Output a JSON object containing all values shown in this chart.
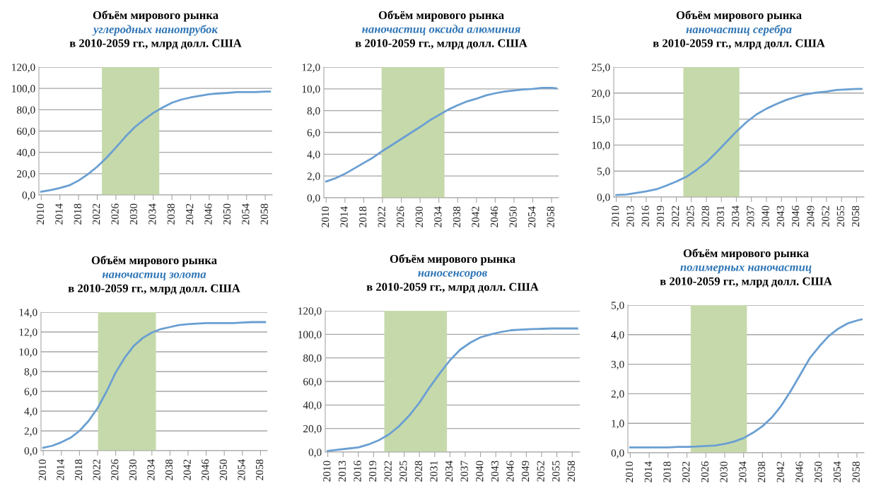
{
  "chart_data": [
    {
      "type": "line",
      "title": "Объём мирового рынка",
      "subtitle": "углеродных нанотрубок",
      "annotations": [
        "в 2010-2059 гг., млрд долл. США"
      ],
      "grid": "y",
      "marker": "none",
      "line_style": "solid",
      "x": [
        2010,
        2012,
        2014,
        2016,
        2018,
        2020,
        2022,
        2024,
        2026,
        2028,
        2030,
        2032,
        2034,
        2036,
        2038,
        2040,
        2042,
        2044,
        2046,
        2048,
        2050,
        2052,
        2054,
        2056,
        2058,
        2059
      ],
      "series": [
        {
          "color": "#6a9fd2",
          "values": [
            3,
            4.5,
            6.5,
            9,
            13.5,
            19.5,
            26.5,
            35,
            44.5,
            54.5,
            63.5,
            70.5,
            77,
            82,
            86.5,
            89.5,
            91.5,
            93,
            94.5,
            95.3,
            95.8,
            96.5,
            96.5,
            96.5,
            97,
            97
          ]
        }
      ],
      "xlim": [
        2009.5,
        2059.5
      ],
      "xticks": [
        2010,
        2014,
        2018,
        2022,
        2026,
        2030,
        2034,
        2038,
        2042,
        2046,
        2050,
        2054,
        2058
      ],
      "ylim": [
        0,
        120
      ],
      "yticks": [
        {
          "value": 0,
          "label": "0,0"
        },
        {
          "value": 20,
          "label": "20,0"
        },
        {
          "value": 40,
          "label": "40,0"
        },
        {
          "value": 60,
          "label": "60,0"
        },
        {
          "value": 80,
          "label": "80,0"
        },
        {
          "value": 100,
          "label": "100,0"
        },
        {
          "value": 120,
          "label": "120,0"
        }
      ],
      "bands": [
        {
          "axis": "x",
          "from": 2023.0,
          "to": 2035.3,
          "color": "#c6d9ab"
        }
      ]
    },
    {
      "type": "line",
      "title": "Объём мирового рынка",
      "subtitle": "наночастиц оксида алюминия",
      "annotations": [
        "в 2010-2059 гг., млрд долл. США"
      ],
      "grid": "y",
      "marker": "none",
      "line_style": "solid",
      "x": [
        2010,
        2012,
        2014,
        2016,
        2018,
        2020,
        2022,
        2024,
        2026,
        2028,
        2030,
        2032,
        2034,
        2036,
        2038,
        2040,
        2042,
        2044,
        2046,
        2048,
        2050,
        2052,
        2054,
        2056,
        2058,
        2059
      ],
      "series": [
        {
          "color": "#6a9fd2",
          "values": [
            1.5,
            1.8,
            2.2,
            2.7,
            3.2,
            3.7,
            4.3,
            4.85,
            5.4,
            5.95,
            6.5,
            7.1,
            7.6,
            8.1,
            8.5,
            8.85,
            9.1,
            9.4,
            9.6,
            9.75,
            9.85,
            9.95,
            10.0,
            10.1,
            10.1,
            10.05
          ]
        }
      ],
      "xlim": [
        2009.5,
        2059.5
      ],
      "xticks": [
        2010,
        2014,
        2018,
        2022,
        2026,
        2030,
        2034,
        2038,
        2042,
        2046,
        2050,
        2054,
        2058
      ],
      "ylim": [
        0,
        12
      ],
      "yticks": [
        {
          "value": 0,
          "label": "0,0"
        },
        {
          "value": 2,
          "label": "2,0"
        },
        {
          "value": 4,
          "label": "4,0"
        },
        {
          "value": 6,
          "label": "6,0"
        },
        {
          "value": 8,
          "label": "8,0"
        },
        {
          "value": 10,
          "label": "10,0"
        },
        {
          "value": 12,
          "label": "12,0"
        }
      ],
      "bands": [
        {
          "axis": "x",
          "from": 2021.8,
          "to": 2035.2,
          "color": "#c6d9ab"
        }
      ]
    },
    {
      "type": "line",
      "title": "Объём мирового рынка",
      "subtitle": "наночастиц серебра",
      "annotations": [
        "в 2010-2059 гг., млрд долл. США"
      ],
      "grid": "y",
      "marker": "none",
      "line_style": "solid",
      "x": [
        2010,
        2012,
        2014,
        2016,
        2018,
        2020,
        2022,
        2024,
        2026,
        2028,
        2030,
        2032,
        2034,
        2036,
        2038,
        2040,
        2042,
        2044,
        2046,
        2048,
        2050,
        2052,
        2054,
        2056,
        2058,
        2059
      ],
      "series": [
        {
          "color": "#6a9fd2",
          "values": [
            0.4,
            0.5,
            0.8,
            1.1,
            1.5,
            2.2,
            3.0,
            3.9,
            5.2,
            6.7,
            8.6,
            10.6,
            12.6,
            14.4,
            15.9,
            17.0,
            17.9,
            18.7,
            19.3,
            19.8,
            20.1,
            20.3,
            20.6,
            20.7,
            20.8,
            20.8
          ]
        }
      ],
      "xlim": [
        2009.5,
        2059.5
      ],
      "xticks": [
        2010,
        2013,
        2016,
        2019,
        2022,
        2025,
        2028,
        2031,
        2034,
        2037,
        2040,
        2043,
        2046,
        2049,
        2052,
        2055,
        2058
      ],
      "ylim": [
        0,
        25
      ],
      "yticks": [
        {
          "value": 0,
          "label": "0,0"
        },
        {
          "value": 5,
          "label": "5,0"
        },
        {
          "value": 10,
          "label": "10,0"
        },
        {
          "value": 15,
          "label": "15,0"
        },
        {
          "value": 20,
          "label": "20,0"
        },
        {
          "value": 25,
          "label": "25,0"
        }
      ],
      "bands": [
        {
          "axis": "x",
          "from": 2023.4,
          "to": 2034.6,
          "color": "#c6d9ab"
        }
      ]
    },
    {
      "type": "line",
      "title": "Объём мирового рынка",
      "subtitle": "наночастиц золота",
      "annotations": [
        "в 2010-2059 гг., млрд долл. США"
      ],
      "grid": "y",
      "marker": "none",
      "line_style": "solid",
      "x": [
        2010,
        2012,
        2014,
        2016,
        2018,
        2020,
        2022,
        2024,
        2026,
        2028,
        2030,
        2032,
        2034,
        2036,
        2038,
        2040,
        2042,
        2044,
        2046,
        2048,
        2050,
        2052,
        2054,
        2056,
        2058,
        2059
      ],
      "series": [
        {
          "color": "#6a9fd2",
          "values": [
            0.3,
            0.5,
            0.85,
            1.3,
            2.0,
            3.0,
            4.3,
            6.0,
            7.9,
            9.4,
            10.6,
            11.4,
            11.95,
            12.3,
            12.5,
            12.7,
            12.8,
            12.85,
            12.9,
            12.9,
            12.9,
            12.9,
            12.95,
            13.0,
            13.0,
            13.0
          ]
        }
      ],
      "xlim": [
        2009.5,
        2059.5
      ],
      "xticks": [
        2010,
        2014,
        2018,
        2022,
        2026,
        2030,
        2034,
        2038,
        2042,
        2046,
        2050,
        2054,
        2058
      ],
      "ylim": [
        0,
        14
      ],
      "yticks": [
        {
          "value": 0,
          "label": "0,0"
        },
        {
          "value": 2,
          "label": "2,0"
        },
        {
          "value": 4,
          "label": "4,0"
        },
        {
          "value": 6,
          "label": "6,0"
        },
        {
          "value": 8,
          "label": "8,0"
        },
        {
          "value": 10,
          "label": "10,0"
        },
        {
          "value": 12,
          "label": "12,0"
        },
        {
          "value": 14,
          "label": "14,0"
        }
      ],
      "bands": [
        {
          "axis": "x",
          "from": 2022.1,
          "to": 2034.9,
          "color": "#c6d9ab"
        }
      ]
    },
    {
      "type": "line",
      "title": "Объём мирового рынка",
      "subtitle": "наносенсоров",
      "annotations": [
        "в 2010-2059 гг., млрд долл. США"
      ],
      "grid": "y",
      "marker": "none",
      "line_style": "solid",
      "x": [
        2010,
        2012,
        2014,
        2016,
        2018,
        2020,
        2022,
        2024,
        2026,
        2028,
        2030,
        2032,
        2034,
        2036,
        2038,
        2040,
        2042,
        2044,
        2046,
        2048,
        2050,
        2052,
        2054,
        2056,
        2058,
        2059
      ],
      "series": [
        {
          "color": "#6a9fd2",
          "values": [
            1,
            2,
            3,
            4,
            6.5,
            10,
            15,
            22,
            31,
            42,
            55,
            67,
            78,
            87,
            93,
            97.5,
            100,
            102,
            103.5,
            104,
            104.5,
            104.7,
            105,
            105,
            105,
            105
          ]
        }
      ],
      "xlim": [
        2009.5,
        2059.5
      ],
      "xticks": [
        2010,
        2013,
        2016,
        2019,
        2022,
        2025,
        2028,
        2031,
        2034,
        2037,
        2040,
        2043,
        2046,
        2049,
        2052,
        2055,
        2058
      ],
      "ylim": [
        0,
        120
      ],
      "yticks": [
        {
          "value": 0,
          "label": "0,0"
        },
        {
          "value": 20,
          "label": "20,0"
        },
        {
          "value": 40,
          "label": "40,0"
        },
        {
          "value": 60,
          "label": "60,0"
        },
        {
          "value": 80,
          "label": "80,0"
        },
        {
          "value": 100,
          "label": "100,0"
        },
        {
          "value": 120,
          "label": "120,0"
        }
      ],
      "bands": [
        {
          "axis": "x",
          "from": 2021.1,
          "to": 2033.4,
          "color": "#c6d9ab"
        }
      ]
    },
    {
      "type": "line",
      "title": "Объём мирового рынка",
      "subtitle": "полимерных наночастиц",
      "annotations": [
        "в 2010-2059 гг., млрд долл. США"
      ],
      "grid": "y",
      "marker": "none",
      "line_style": "solid",
      "x": [
        2010,
        2014,
        2018,
        2020,
        2022,
        2024,
        2026,
        2028,
        2030,
        2032,
        2034,
        2036,
        2038,
        2040,
        2042,
        2044,
        2046,
        2048,
        2050,
        2052,
        2054,
        2056,
        2058,
        2059
      ],
      "series": [
        {
          "color": "#6a9fd2",
          "values": [
            0.18,
            0.18,
            0.18,
            0.2,
            0.2,
            0.21,
            0.23,
            0.25,
            0.3,
            0.38,
            0.5,
            0.68,
            0.9,
            1.2,
            1.6,
            2.1,
            2.65,
            3.2,
            3.6,
            3.95,
            4.2,
            4.38,
            4.48,
            4.52
          ]
        }
      ],
      "xlim": [
        2009.5,
        2059.5
      ],
      "xticks": [
        2010,
        2014,
        2018,
        2022,
        2026,
        2030,
        2034,
        2038,
        2042,
        2046,
        2050,
        2054,
        2058
      ],
      "ylim": [
        0,
        5
      ],
      "yticks": [
        {
          "value": 0,
          "label": "0,0"
        },
        {
          "value": 1,
          "label": "1,0"
        },
        {
          "value": 2,
          "label": "2,0"
        },
        {
          "value": 3,
          "label": "3,0"
        },
        {
          "value": 4,
          "label": "4,0"
        },
        {
          "value": 5,
          "label": "5,0"
        }
      ],
      "bands": [
        {
          "axis": "x",
          "from": 2022.8,
          "to": 2034.7,
          "color": "#c6d9ab"
        }
      ]
    }
  ]
}
